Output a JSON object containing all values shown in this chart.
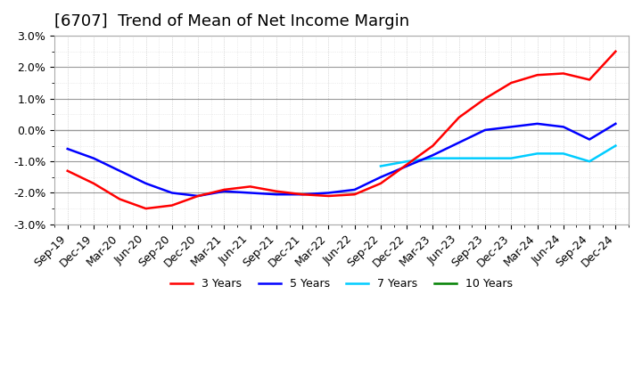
{
  "title": "[6707]  Trend of Mean of Net Income Margin",
  "ylim": [
    -0.03,
    0.03
  ],
  "yticks": [
    -0.03,
    -0.02,
    -0.01,
    0.0,
    0.01,
    0.02,
    0.03
  ],
  "x_labels": [
    "Sep-19",
    "Dec-19",
    "Mar-20",
    "Jun-20",
    "Sep-20",
    "Dec-20",
    "Mar-21",
    "Jun-21",
    "Sep-21",
    "Dec-21",
    "Mar-22",
    "Jun-22",
    "Sep-22",
    "Dec-22",
    "Mar-23",
    "Jun-23",
    "Sep-23",
    "Dec-23",
    "Mar-24",
    "Jun-24",
    "Sep-24",
    "Dec-24"
  ],
  "color_3y": "#ff0000",
  "color_5y": "#0000ff",
  "color_7y": "#00ccff",
  "color_10y": "#008000",
  "y_3y": [
    -0.013,
    -0.017,
    -0.022,
    -0.025,
    -0.024,
    -0.021,
    -0.019,
    -0.018,
    -0.0195,
    -0.0205,
    -0.021,
    -0.0205,
    -0.017,
    -0.011,
    -0.005,
    0.004,
    0.01,
    0.015,
    0.0175,
    0.018,
    0.016,
    0.025
  ],
  "y_5y": [
    -0.006,
    -0.009,
    -0.013,
    -0.017,
    -0.02,
    -0.021,
    -0.0195,
    -0.02,
    -0.0205,
    -0.0205,
    -0.02,
    -0.019,
    -0.015,
    -0.0115,
    -0.008,
    -0.004,
    0.0,
    0.001,
    0.002,
    0.001,
    -0.003,
    0.002
  ],
  "y_7y": [
    null,
    null,
    null,
    null,
    null,
    null,
    null,
    null,
    null,
    null,
    null,
    null,
    -0.0115,
    -0.01,
    -0.009,
    -0.009,
    -0.009,
    -0.009,
    -0.0075,
    -0.0075,
    -0.01,
    -0.005
  ],
  "y_10y": [
    null,
    null,
    null,
    null,
    null,
    null,
    null,
    null,
    null,
    null,
    null,
    null,
    null,
    null,
    null,
    null,
    null,
    null,
    null,
    null,
    null,
    null
  ],
  "background_color": "#ffffff",
  "grid_color": "#cccccc",
  "grid_minor_color": "#dddddd",
  "title_fontsize": 13,
  "tick_fontsize": 9,
  "linewidth": 1.8
}
